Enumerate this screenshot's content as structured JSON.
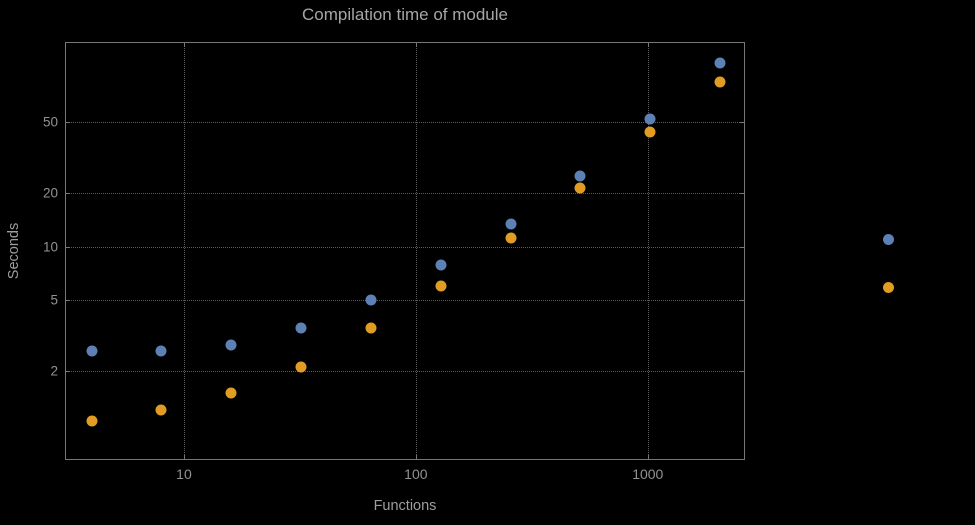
{
  "colors": {
    "background": "#000000",
    "frame": "#767676",
    "grid": "#5d5d5d",
    "text": "#9e9e9e",
    "series_blue": "#5E81B5",
    "series_orange": "#E19C24"
  },
  "chart_data": {
    "type": "scatter",
    "title": "Compilation time of module",
    "xlabel": "Functions",
    "ylabel": "Seconds",
    "x_scale": "log",
    "y_scale": "log",
    "xlim": [
      3.1,
      2600
    ],
    "ylim": [
      0.64,
      140
    ],
    "grid": true,
    "legend_position": "right",
    "x_ticks": [
      {
        "value": 10,
        "label": "10"
      },
      {
        "value": 100,
        "label": "100"
      },
      {
        "value": 1000,
        "label": "1000"
      }
    ],
    "y_ticks": [
      {
        "value": 2,
        "label": "2"
      },
      {
        "value": 5,
        "label": "5"
      },
      {
        "value": 10,
        "label": "10"
      },
      {
        "value": 20,
        "label": "20"
      },
      {
        "value": 50,
        "label": "50"
      }
    ],
    "series": [
      {
        "name": "blue",
        "color": "#5E81B5",
        "points": [
          [
            4,
            2.6
          ],
          [
            8,
            2.6
          ],
          [
            16,
            2.8
          ],
          [
            32,
            3.5
          ],
          [
            64,
            5.0
          ],
          [
            128,
            7.9
          ],
          [
            256,
            13.5
          ],
          [
            512,
            25
          ],
          [
            1024,
            52
          ],
          [
            2048,
            108
          ]
        ]
      },
      {
        "name": "orange",
        "color": "#E19C24",
        "points": [
          [
            4,
            1.05
          ],
          [
            8,
            1.2
          ],
          [
            16,
            1.5
          ],
          [
            32,
            2.1
          ],
          [
            64,
            3.5
          ],
          [
            128,
            6.0
          ],
          [
            256,
            11.2
          ],
          [
            512,
            21.5
          ],
          [
            1024,
            44
          ],
          [
            2048,
            84
          ]
        ]
      }
    ],
    "legend_markers": [
      {
        "color": "#5E81B5"
      },
      {
        "color": "#E19C24"
      }
    ]
  }
}
